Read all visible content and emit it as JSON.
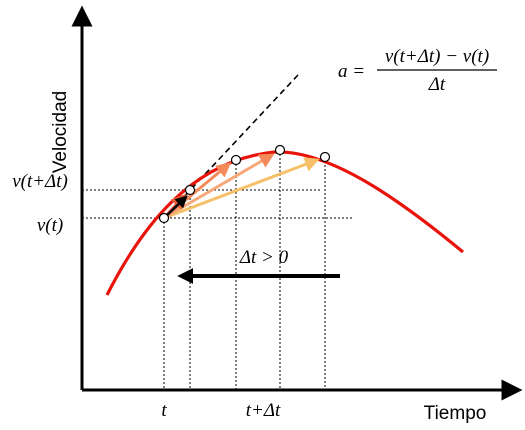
{
  "axes": {
    "y_label": "Velocidad",
    "x_label": "Tiempo"
  },
  "formula": {
    "lhs": "a =",
    "numerator": "v(t+Δt) − v(t)",
    "denominator": "Δt"
  },
  "y_ticks": {
    "upper": "v(t+Δt)",
    "lower": "v(t)"
  },
  "x_ticks": {
    "left": "t",
    "right": "t+Δt"
  },
  "delta_note": "Δt > 0",
  "colors": {
    "curve": "#e8140c",
    "secant_near": "#f0613a",
    "secant_mid": "#f48a5a",
    "secant_far": "#f6c068",
    "tangent_arrow": "#000000",
    "axis": "#000000"
  }
}
